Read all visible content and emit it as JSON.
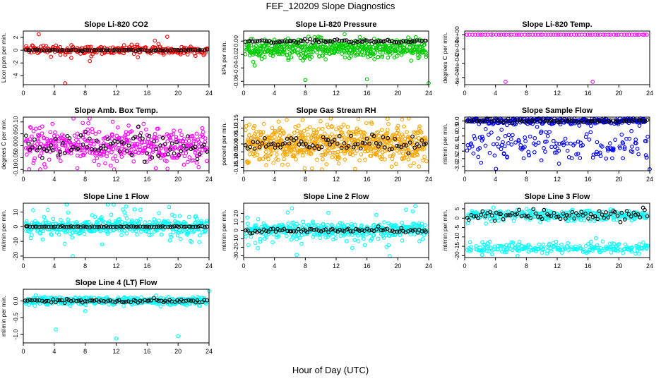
{
  "title": "FEF_120209  Slope Diagnostics",
  "x_axis_label": "Hour of Day (UTC)",
  "colors": {
    "red": "#ff0000",
    "green": "#00cc00",
    "magenta": "#ff00ff",
    "orange": "#ffa500",
    "blue": "#0000ff",
    "cyan": "#00ffff",
    "black": "#000000"
  },
  "chart_data": [
    {
      "type": "scatter",
      "title": "Slope Li-820 CO2",
      "ylabel": "Licor ppm per min.",
      "xlim": [
        0,
        24
      ],
      "ylim": [
        -5.4,
        3
      ],
      "x_ticks": [
        0,
        4,
        8,
        12,
        16,
        20,
        24
      ],
      "x_tick_labels": [
        "0",
        "4",
        "8",
        "12",
        "16",
        "20",
        "24"
      ],
      "y_ticks": [
        -4,
        -2,
        0,
        2
      ],
      "y_tick_labels": [
        "-4",
        "-2",
        "0",
        "2"
      ],
      "series": [
        {
          "name": "points",
          "color": "red",
          "n": 260,
          "center": 0,
          "spread": 0.35,
          "outliers": [
            [
              2,
              2.5
            ],
            [
              5.4,
              -5.2
            ],
            [
              17,
              1.5
            ],
            [
              18.6,
              2.1
            ],
            [
              6.2,
              -1.2
            ],
            [
              14.8,
              -1.1
            ],
            [
              8.6,
              -1.7
            ]
          ]
        },
        {
          "name": "mean",
          "color": "black",
          "n": 80,
          "center": 0,
          "spread": 0.05
        }
      ]
    },
    {
      "type": "scatter",
      "title": "Slope Li-820 Pressure",
      "ylabel": "kPa per min.",
      "xlim": [
        0,
        24
      ],
      "ylim": [
        -0.065,
        0.015
      ],
      "x_ticks": [
        0,
        4,
        8,
        12,
        16,
        20,
        24
      ],
      "x_tick_labels": [
        "0",
        "4",
        "8",
        "12",
        "16",
        "20",
        "24"
      ],
      "y_ticks": [
        -0.06,
        -0.04,
        -0.02,
        0
      ],
      "y_tick_labels": [
        "-0.06",
        "-0.04",
        "-0.02",
        "0.00"
      ],
      "series": [
        {
          "name": "points",
          "color": "green",
          "n": 500,
          "center": -0.008,
          "spread": 0.006,
          "band2": -0.018,
          "outliers": [
            [
              8,
              -0.058
            ],
            [
              16,
              -0.057
            ],
            [
              24,
              -0.063
            ]
          ]
        },
        {
          "name": "mean",
          "color": "black",
          "n": 80,
          "center": 0.0,
          "spread": 0.0012
        }
      ]
    },
    {
      "type": "scatter",
      "title": "Slope Li-820 Temp.",
      "ylabel": "degrees C per min.",
      "xlim": [
        0,
        24
      ],
      "ylim": [
        -0.0007,
        5e-05
      ],
      "x_ticks": [
        0,
        4,
        8,
        12,
        16,
        20,
        24
      ],
      "x_tick_labels": [
        "0",
        "4",
        "8",
        "12",
        "16",
        "20",
        "24"
      ],
      "y_ticks": [
        -0.0006,
        -0.0004,
        -0.0002,
        0
      ],
      "y_tick_labels": [
        "-6e-04",
        "-4e-04",
        "-2e-04",
        "0e+00"
      ],
      "series": [
        {
          "name": "points",
          "color": "magenta",
          "n": 70,
          "center": 0,
          "spread": 0,
          "outliers": [
            [
              5.3,
              -0.00066
            ],
            [
              16.6,
              -0.00066
            ]
          ]
        },
        {
          "name": "mean",
          "color": "black",
          "n": 0,
          "center": 0,
          "spread": 0
        }
      ]
    },
    {
      "type": "scatter",
      "title": "Slope Amb. Box Temp.",
      "ylabel": "degrees C per min.",
      "xlim": [
        0,
        24
      ],
      "ylim": [
        -0.105,
        0.12
      ],
      "x_ticks": [
        0,
        4,
        8,
        12,
        16,
        20,
        24
      ],
      "x_tick_labels": [
        "0",
        "4",
        "8",
        "12",
        "16",
        "20",
        "24"
      ],
      "y_ticks": [
        -0.1,
        -0.05,
        0,
        0.05,
        0.1
      ],
      "y_tick_labels": [
        "-0.10",
        "-0.05",
        "0.00",
        "0.05",
        "0.10"
      ],
      "series": [
        {
          "name": "points",
          "color": "magenta",
          "n": 420,
          "center": 0,
          "spread": 0.04
        },
        {
          "name": "mean",
          "color": "black",
          "n": 80,
          "center": 0,
          "spread": 0.025
        }
      ]
    },
    {
      "type": "scatter",
      "title": "Slope Gas Stream RH",
      "ylabel": "percent per min.",
      "xlim": [
        0,
        24
      ],
      "ylim": [
        -0.17,
        0.17
      ],
      "x_ticks": [
        0,
        4,
        8,
        12,
        16,
        20,
        24
      ],
      "x_tick_labels": [
        "0",
        "4",
        "8",
        "12",
        "16",
        "20",
        "24"
      ],
      "y_ticks": [
        -0.15,
        -0.1,
        -0.05,
        0,
        0.05,
        0.1,
        0.15
      ],
      "y_tick_labels": [
        "-0.15",
        "-0.10",
        "-0.05",
        "0.00",
        "0.05",
        "0.10",
        "0.15"
      ],
      "series": [
        {
          "name": "points",
          "color": "orange",
          "n": 650,
          "center": 0,
          "spread": 0.06
        },
        {
          "name": "mean",
          "color": "black",
          "n": 80,
          "center": 0,
          "spread": 0.025
        }
      ]
    },
    {
      "type": "scatter",
      "title": "Slope Sample Flow",
      "ylabel": "ml/min per min.",
      "xlim": [
        0,
        24
      ],
      "ylim": [
        -3.3,
        0.25
      ],
      "x_ticks": [
        0,
        4,
        8,
        12,
        16,
        20,
        24
      ],
      "x_tick_labels": [
        "0",
        "4",
        "8",
        "12",
        "16",
        "20",
        "24"
      ],
      "y_ticks": [
        -3,
        -2.5,
        -2,
        -1.5,
        -1,
        -0.5,
        0
      ],
      "y_tick_labels": [
        "-3.0",
        "-2.5",
        "-2.0",
        "-1.5",
        "-1.0",
        "-0.5",
        "0.0"
      ],
      "series": [
        {
          "name": "points",
          "color": "blue",
          "n": 420,
          "center": 0,
          "spread": 0.12,
          "band2": -1.6,
          "band2_spread": 0.55,
          "outliers": [
            [
              24,
              -3.2
            ]
          ]
        },
        {
          "name": "mean",
          "color": "black",
          "n": 80,
          "center": 0,
          "spread": 0.05
        }
      ]
    },
    {
      "type": "scatter",
      "title": "Slope Line 1 Flow",
      "ylabel": "ml/min per min.",
      "xlim": [
        0,
        24
      ],
      "ylim": [
        -21,
        16
      ],
      "x_ticks": [
        0,
        4,
        8,
        12,
        16,
        20,
        24
      ],
      "x_tick_labels": [
        "0",
        "4",
        "8",
        "12",
        "16",
        "20",
        "24"
      ],
      "y_ticks": [
        -20,
        -10,
        0,
        10
      ],
      "y_tick_labels": [
        "-20",
        "-10",
        "0",
        "10"
      ],
      "series": [
        {
          "name": "points",
          "color": "cyan",
          "n": 420,
          "center": 0,
          "spread": 2.5,
          "wide": 9
        },
        {
          "name": "mean",
          "color": "black",
          "n": 80,
          "center": 0,
          "spread": 0.2
        }
      ]
    },
    {
      "type": "scatter",
      "title": "Slope Line 2 Flow",
      "ylabel": "ml/min per min.",
      "xlim": [
        0,
        24
      ],
      "ylim": [
        -32,
        32
      ],
      "x_ticks": [
        0,
        4,
        8,
        12,
        16,
        20,
        24
      ],
      "x_tick_labels": [
        "0",
        "4",
        "8",
        "12",
        "16",
        "20",
        "24"
      ],
      "y_ticks": [
        -30,
        -20,
        -10,
        0,
        10,
        20
      ],
      "y_tick_labels": [
        "-30",
        "-20",
        "-10",
        "0",
        "10",
        "20"
      ],
      "series": [
        {
          "name": "points",
          "color": "cyan",
          "n": 420,
          "center": 0,
          "spread": 4,
          "wide": 14
        },
        {
          "name": "mean",
          "color": "black",
          "n": 80,
          "center": 0,
          "spread": 1.2
        }
      ]
    },
    {
      "type": "scatter",
      "title": "Slope Line 3 Flow",
      "ylabel": "ml/min per min.",
      "xlim": [
        0,
        24
      ],
      "ylim": [
        -21,
        8
      ],
      "x_ticks": [
        0,
        4,
        8,
        12,
        16,
        20,
        24
      ],
      "x_tick_labels": [
        "0",
        "4",
        "8",
        "12",
        "16",
        "20",
        "24"
      ],
      "y_ticks": [
        -20,
        -15,
        -10,
        -5,
        0,
        5
      ],
      "y_tick_labels": [
        "-20",
        "-15",
        "-10",
        "-5",
        "0",
        "5"
      ],
      "series": [
        {
          "name": "points",
          "color": "cyan",
          "n": 500,
          "center": 1.5,
          "spread": 1.5,
          "band2": -16,
          "band2_spread": 1.6
        },
        {
          "name": "mean",
          "color": "black",
          "n": 80,
          "center": 1.5,
          "spread": 1.5
        }
      ]
    },
    {
      "type": "scatter",
      "title": "Slope Line 4 (LT) Flow",
      "ylabel": "ml/min per min.",
      "xlim": [
        0,
        24
      ],
      "ylim": [
        -1.25,
        0.35
      ],
      "x_ticks": [
        0,
        4,
        8,
        12,
        16,
        20,
        24
      ],
      "x_tick_labels": [
        "0",
        "4",
        "8",
        "12",
        "16",
        "20",
        "24"
      ],
      "y_ticks": [
        -1,
        -0.5,
        0
      ],
      "y_tick_labels": [
        "-1.0",
        "-0.5",
        "0.0"
      ],
      "series": [
        {
          "name": "points",
          "color": "cyan",
          "n": 380,
          "center": 0,
          "spread": 0.06,
          "outliers": [
            [
              4.2,
              -0.85
            ],
            [
              12,
              -1.12
            ],
            [
              20,
              -1.05
            ],
            [
              8,
              -0.3
            ],
            [
              24,
              0.3
            ]
          ]
        },
        {
          "name": "mean",
          "color": "black",
          "n": 80,
          "center": 0,
          "spread": 0.025
        }
      ]
    }
  ]
}
